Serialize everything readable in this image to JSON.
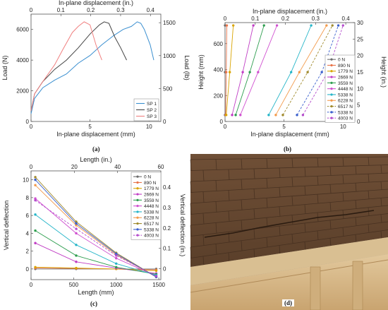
{
  "panels": {
    "a": {
      "caption": "(a)"
    },
    "b": {
      "caption": "(b)"
    },
    "c": {
      "caption": "(c)"
    },
    "d": {
      "caption": "(d)"
    }
  },
  "chart_data": [
    {
      "id": "a",
      "type": "line",
      "xlabel": "In-plane displacement (mm)",
      "x2label": "In-plane displacement (in.)",
      "ylabel": "Load (N)",
      "y2label": "Load (lb)",
      "xlim": [
        0,
        11
      ],
      "ylim": [
        0,
        7000
      ],
      "xticks": [
        0,
        5,
        10
      ],
      "x2ticks": [
        0,
        0.1,
        0.2,
        0.3,
        0.4
      ],
      "yticks": [
        0,
        2000,
        4000,
        6000
      ],
      "y2ticks": [
        0,
        500,
        1000,
        1500
      ],
      "legend_position": "bottom-right",
      "series": [
        {
          "name": "SP 1",
          "color": "#3a8fd0",
          "x": [
            0,
            0.3,
            1,
            2,
            3,
            4,
            5,
            6,
            7,
            7.8,
            8.5,
            9,
            9.3,
            9.6,
            10.1,
            10.4
          ],
          "y": [
            500,
            1500,
            2200,
            2700,
            3100,
            3800,
            4300,
            5000,
            5600,
            6000,
            6200,
            6500,
            6400,
            6000,
            5000,
            4000
          ]
        },
        {
          "name": "SP 2",
          "color": "#444444",
          "x": [
            0,
            0.3,
            1,
            2,
            3,
            4,
            5,
            5.8,
            6.2,
            6.6,
            7.1,
            7.6,
            8.1
          ],
          "y": [
            700,
            1800,
            2600,
            3400,
            4000,
            4800,
            5700,
            6300,
            6500,
            6400,
            5500,
            4800,
            4000
          ]
        },
        {
          "name": "SP 3",
          "color": "#f08080",
          "x": [
            0,
            0.3,
            1,
            2,
            2.7,
            3.5,
            4,
            4.5,
            5,
            5.5,
            6
          ],
          "y": [
            700,
            1800,
            2600,
            3700,
            4700,
            5800,
            6200,
            6500,
            6300,
            5000,
            4000
          ]
        }
      ]
    },
    {
      "id": "b",
      "type": "line",
      "xlabel": "In-plane displacement (mm)",
      "x2label": "In-plane displacement (in.)",
      "ylabel": "Height (mm)",
      "y2label": "Height (in.)",
      "xlim": [
        0,
        11
      ],
      "ylim": [
        0,
        762
      ],
      "xticks": [
        0,
        5,
        10
      ],
      "x2ticks": [
        0,
        0.1,
        0.2,
        0.3,
        0.4
      ],
      "yticks": [
        0,
        200,
        400,
        600
      ],
      "y2ticks": [
        0,
        5,
        10,
        15,
        20,
        25,
        30
      ],
      "heights": [
        50,
        380,
        740
      ],
      "legend_position": "right",
      "series": [
        {
          "name": "0 N",
          "color": "#6b6b6b",
          "dashed": false,
          "x": [
            0,
            0,
            0
          ]
        },
        {
          "name": "890 N",
          "color": "#e8744a",
          "dashed": false,
          "x": [
            0.05,
            0.1,
            0.15
          ]
        },
        {
          "name": "1779 N",
          "color": "#d9a400",
          "dashed": false,
          "x": [
            0.1,
            0.4,
            0.7
          ]
        },
        {
          "name": "2669 N",
          "color": "#c03cc4",
          "dashed": false,
          "x": [
            0.6,
            1.5,
            2.4
          ]
        },
        {
          "name": "3559 N",
          "color": "#2e9e4f",
          "dashed": false,
          "x": [
            0.9,
            2.1,
            3.3
          ]
        },
        {
          "name": "4448 N",
          "color": "#d050d0",
          "dashed": false,
          "x": [
            1.3,
            2.8,
            4.4
          ]
        },
        {
          "name": "5338 N",
          "color": "#25b5c8",
          "dashed": false,
          "x": [
            3.7,
            5.6,
            7.3
          ]
        },
        {
          "name": "6228 N",
          "color": "#f39a4a",
          "dashed": false,
          "x": [
            4.3,
            6.3,
            8.6
          ]
        },
        {
          "name": "6517 N",
          "color": "#a08a2c",
          "dashed": true,
          "x": [
            4.9,
            7.0,
            9.1
          ]
        },
        {
          "name": "5338 N",
          "color": "#3a5fcd",
          "dashed": true,
          "x": [
            6.1,
            8.2,
            9.6
          ]
        },
        {
          "name": "4003 N",
          "color": "#b44ccc",
          "dashed": true,
          "x": [
            6.6,
            8.7,
            10.0
          ]
        }
      ]
    },
    {
      "id": "c",
      "type": "line",
      "xlabel": "Length (mm)",
      "x2label": "Length (in.)",
      "ylabel": "Vertical deflection",
      "y2label": "Vertical deflection (in.)",
      "xlim": [
        0,
        1524
      ],
      "ylim": [
        -1.2,
        11
      ],
      "xticks": [
        0,
        500,
        1000,
        1500
      ],
      "x2ticks": [
        0,
        20,
        40,
        60
      ],
      "yticks": [
        0,
        2,
        4,
        6,
        8,
        10
      ],
      "y2ticks": [
        0,
        0.1,
        0.2,
        0.3,
        0.4
      ],
      "x": [
        50,
        530,
        1000,
        1470
      ],
      "legend_position": "right",
      "series": [
        {
          "name": "0 N",
          "color": "#6b6b6b",
          "dashed": false,
          "y": [
            0,
            0,
            0,
            0
          ]
        },
        {
          "name": "890 N",
          "color": "#e8744a",
          "dashed": false,
          "y": [
            0.1,
            0.05,
            0,
            -0.1
          ]
        },
        {
          "name": "1779 N",
          "color": "#d9a400",
          "dashed": false,
          "y": [
            0.2,
            0.1,
            0,
            -0.2
          ]
        },
        {
          "name": "2669 N",
          "color": "#c03cc4",
          "dashed": false,
          "y": [
            2.9,
            0.8,
            0.1,
            -0.5
          ]
        },
        {
          "name": "3559 N",
          "color": "#2e9e4f",
          "dashed": false,
          "y": [
            4.3,
            1.5,
            0.2,
            -0.6
          ]
        },
        {
          "name": "4448 N",
          "color": "#d050d0",
          "dashed": false,
          "y": [
            7.9,
            4.0,
            1.2,
            -0.8
          ]
        },
        {
          "name": "5338 N",
          "color": "#25b5c8",
          "dashed": false,
          "y": [
            6.1,
            2.7,
            0.6,
            -0.7
          ]
        },
        {
          "name": "6228 N",
          "color": "#f39a4a",
          "dashed": false,
          "y": [
            9.4,
            4.9,
            1.6,
            -0.9
          ]
        },
        {
          "name": "6517 N",
          "color": "#a08a2c",
          "dashed": false,
          "y": [
            10.3,
            5.3,
            1.8,
            -0.9
          ]
        },
        {
          "name": "5338 N",
          "color": "#3a5fcd",
          "dashed": false,
          "y": [
            10.0,
            5.1,
            1.7,
            -0.9
          ]
        },
        {
          "name": "4003 N",
          "color": "#b44ccc",
          "dashed": true,
          "y": [
            7.7,
            4.5,
            1.5,
            -0.8
          ]
        }
      ]
    }
  ]
}
